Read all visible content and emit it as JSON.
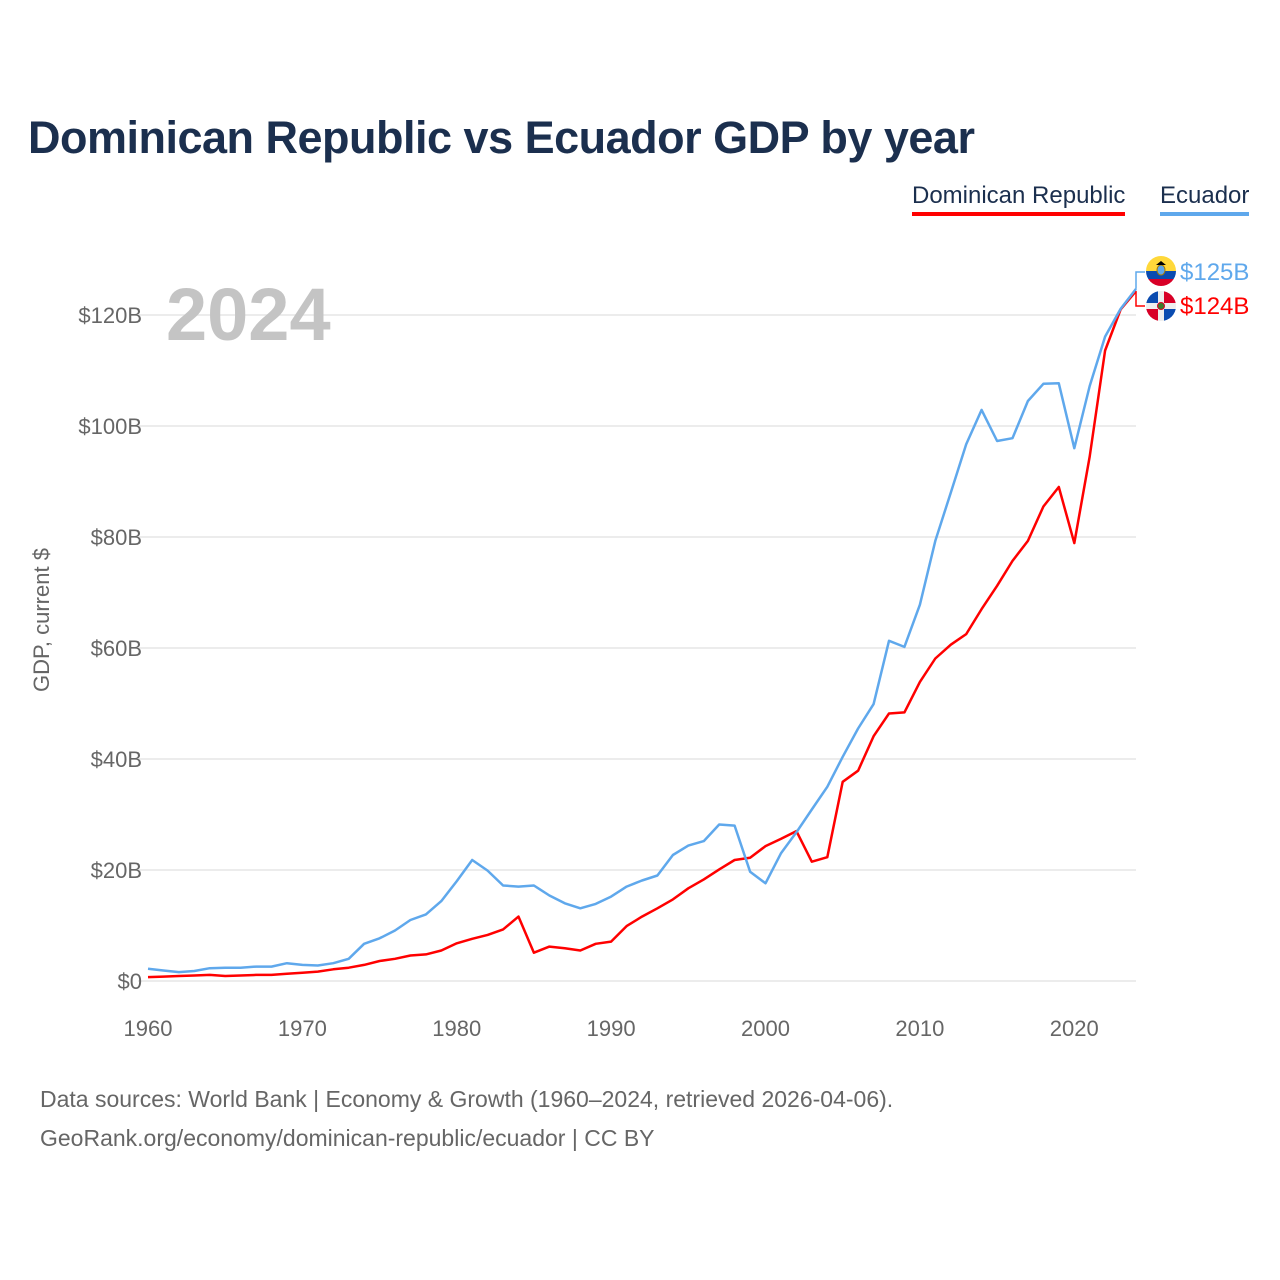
{
  "chart_data": {
    "type": "line",
    "title": "Dominican Republic vs Ecuador GDP by year",
    "ylabel": "GDP, current $",
    "xlabel": "",
    "year_label": "2024",
    "xlim": [
      1960,
      2024
    ],
    "ylim": [
      0,
      120
    ],
    "x_ticks": [
      1960,
      1970,
      1980,
      1990,
      2000,
      2010,
      2020
    ],
    "y_ticks": [
      0,
      20,
      40,
      60,
      80,
      100,
      120
    ],
    "y_tick_labels": [
      "$0",
      "$20B",
      "$40B",
      "$60B",
      "$80B",
      "$100B",
      "$120B"
    ],
    "x_tick_labels": [
      "1960",
      "1970",
      "1980",
      "1990",
      "2000",
      "2010",
      "2020"
    ],
    "legend_placement": "top-right",
    "grid": true,
    "x": [
      1960,
      1961,
      1962,
      1963,
      1964,
      1965,
      1966,
      1967,
      1968,
      1969,
      1970,
      1971,
      1972,
      1973,
      1974,
      1975,
      1976,
      1977,
      1978,
      1979,
      1980,
      1981,
      1982,
      1983,
      1984,
      1985,
      1986,
      1987,
      1988,
      1989,
      1990,
      1991,
      1992,
      1993,
      1994,
      1995,
      1996,
      1997,
      1998,
      1999,
      2000,
      2001,
      2002,
      2003,
      2004,
      2005,
      2006,
      2007,
      2008,
      2009,
      2010,
      2011,
      2012,
      2013,
      2014,
      2015,
      2016,
      2017,
      2018,
      2019,
      2020,
      2021,
      2022,
      2023,
      2024
    ],
    "series": [
      {
        "name": "Dominican Republic",
        "color": "#ff0000",
        "end_label": "$124B",
        "flag": "dominican-republic-flag",
        "values": [
          0.7,
          0.8,
          0.9,
          1.0,
          1.1,
          0.9,
          1.0,
          1.1,
          1.1,
          1.3,
          1.5,
          1.7,
          2.1,
          2.4,
          2.9,
          3.6,
          4.0,
          4.6,
          4.8,
          5.5,
          6.8,
          7.6,
          8.3,
          9.3,
          11.6,
          5.1,
          6.2,
          5.9,
          5.5,
          6.7,
          7.1,
          9.9,
          11.6,
          13.1,
          14.7,
          16.7,
          18.3,
          20.1,
          21.8,
          22.2,
          24.3,
          25.6,
          27.0,
          21.5,
          22.3,
          35.9,
          37.9,
          44.1,
          48.2,
          48.4,
          53.9,
          58.1,
          60.6,
          62.5,
          67.0,
          71.2,
          75.7,
          79.3,
          85.5,
          89.0,
          78.9,
          94.5,
          113.6,
          121.0,
          124.3
        ]
      },
      {
        "name": "Ecuador",
        "color": "#5fa8ec",
        "end_label": "$125B",
        "flag": "ecuador-flag",
        "values": [
          2.2,
          1.9,
          1.6,
          1.8,
          2.3,
          2.4,
          2.4,
          2.6,
          2.6,
          3.2,
          2.9,
          2.8,
          3.2,
          4.0,
          6.7,
          7.7,
          9.1,
          11.0,
          12.0,
          14.4,
          18.0,
          21.8,
          19.9,
          17.2,
          17.0,
          17.2,
          15.4,
          14.0,
          13.1,
          13.9,
          15.2,
          17.0,
          18.1,
          19.0,
          22.7,
          24.4,
          25.2,
          28.2,
          28.0,
          19.7,
          17.6,
          23.0,
          26.8,
          30.9,
          35.0,
          40.4,
          45.5,
          49.9,
          61.3,
          60.2,
          67.8,
          79.3,
          88.0,
          96.7,
          102.9,
          97.3,
          97.8,
          104.5,
          107.6,
          107.7,
          96.0,
          107.2,
          116.1,
          121.1,
          124.7
        ]
      }
    ]
  },
  "footer": {
    "line1": "Data sources: World Bank | Economy & Growth (1960–2024, retrieved 2026-04-06).",
    "line2": "GeoRank.org/economy/dominican-republic/ecuador | CC BY"
  }
}
